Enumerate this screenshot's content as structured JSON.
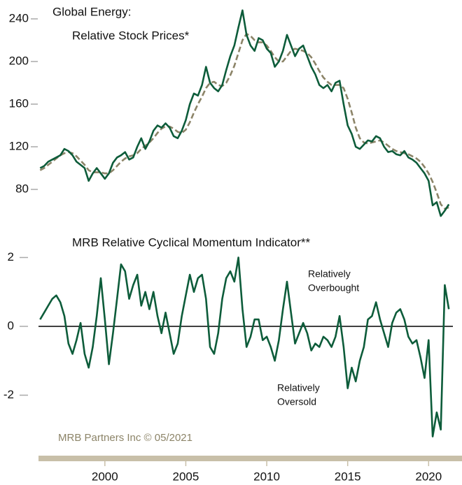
{
  "chart_data": [
    {
      "type": "line",
      "title": "Global Energy:",
      "subtitle": "Relative Stock Prices*",
      "x": [
        1996,
        1996.25,
        1996.5,
        1996.75,
        1997,
        1997.25,
        1997.5,
        1997.75,
        1998,
        1998.25,
        1998.5,
        1998.75,
        1999,
        1999.25,
        1999.5,
        1999.75,
        2000,
        2000.25,
        2000.5,
        2000.75,
        2001,
        2001.25,
        2001.5,
        2001.75,
        2002,
        2002.25,
        2002.5,
        2002.75,
        2003,
        2003.25,
        2003.5,
        2003.75,
        2004,
        2004.25,
        2004.5,
        2004.75,
        2005,
        2005.25,
        2005.5,
        2005.75,
        2006,
        2006.25,
        2006.5,
        2006.75,
        2007,
        2007.25,
        2007.5,
        2007.75,
        2008,
        2008.25,
        2008.5,
        2008.75,
        2009,
        2009.25,
        2009.5,
        2009.75,
        2010,
        2010.25,
        2010.5,
        2010.75,
        2011,
        2011.25,
        2011.5,
        2011.75,
        2012,
        2012.25,
        2012.5,
        2012.75,
        2013,
        2013.25,
        2013.5,
        2013.75,
        2014,
        2014.25,
        2014.5,
        2014.75,
        2015,
        2015.25,
        2015.5,
        2015.75,
        2016,
        2016.25,
        2016.5,
        2016.75,
        2017,
        2017.25,
        2017.5,
        2017.75,
        2018,
        2018.25,
        2018.5,
        2018.75,
        2019,
        2019.25,
        2019.5,
        2019.75,
        2020,
        2020.25,
        2020.5,
        2020.75,
        2021,
        2021.25
      ],
      "series": [
        {
          "color": "#0d5c3a",
          "dashed": false,
          "values": [
            100,
            102,
            106,
            108,
            110,
            112,
            118,
            116,
            112,
            106,
            103,
            100,
            88,
            95,
            100,
            95,
            90,
            95,
            105,
            110,
            112,
            115,
            108,
            110,
            120,
            128,
            118,
            125,
            135,
            140,
            138,
            142,
            138,
            130,
            128,
            135,
            145,
            160,
            170,
            168,
            178,
            195,
            180,
            175,
            172,
            178,
            192,
            205,
            215,
            232,
            248,
            225,
            215,
            210,
            222,
            220,
            212,
            208,
            195,
            200,
            210,
            225,
            215,
            205,
            212,
            215,
            205,
            195,
            188,
            178,
            175,
            178,
            172,
            180,
            182,
            160,
            140,
            132,
            120,
            118,
            122,
            126,
            125,
            130,
            128,
            120,
            115,
            116,
            113,
            112,
            116,
            110,
            108,
            105,
            100,
            95,
            88,
            65,
            68,
            55,
            60,
            66
          ]
        },
        {
          "color": "#8c8468",
          "dashed": true,
          "values": [
            98,
            100,
            103,
            106,
            109,
            112,
            114,
            115,
            114,
            111,
            107,
            103,
            98,
            96,
            96,
            96,
            95,
            95,
            98,
            102,
            106,
            109,
            111,
            112,
            114,
            118,
            121,
            124,
            128,
            133,
            137,
            139,
            139,
            137,
            134,
            133,
            136,
            143,
            152,
            160,
            167,
            175,
            180,
            181,
            178,
            177,
            180,
            187,
            196,
            208,
            220,
            226,
            224,
            220,
            218,
            218,
            215,
            210,
            204,
            200,
            200,
            205,
            210,
            212,
            211,
            210,
            208,
            204,
            198,
            191,
            185,
            181,
            178,
            178,
            178,
            175,
            165,
            152,
            138,
            128,
            124,
            123,
            124,
            125,
            126,
            124,
            121,
            118,
            116,
            115,
            114,
            113,
            111,
            109,
            106,
            101,
            95,
            87,
            77,
            66,
            62,
            63
          ]
        }
      ],
      "xlim": [
        1995.9,
        2021.5
      ],
      "ylim": [
        45,
        252
      ],
      "yticks": [
        80,
        120,
        160,
        200,
        240
      ]
    },
    {
      "type": "line",
      "title": "MRB Relative Cyclical Momentum Indicator**",
      "annotations": [
        [
          "Relatively",
          "Overbought"
        ],
        [
          "Relatively",
          "Oversold"
        ]
      ],
      "x": [
        1996,
        1996.25,
        1996.5,
        1996.75,
        1997,
        1997.25,
        1997.5,
        1997.75,
        1998,
        1998.25,
        1998.5,
        1998.75,
        1999,
        1999.25,
        1999.5,
        1999.75,
        2000,
        2000.25,
        2000.5,
        2000.75,
        2001,
        2001.25,
        2001.5,
        2001.75,
        2002,
        2002.25,
        2002.5,
        2002.75,
        2003,
        2003.25,
        2003.5,
        2003.75,
        2004,
        2004.25,
        2004.5,
        2004.75,
        2005,
        2005.25,
        2005.5,
        2005.75,
        2006,
        2006.25,
        2006.5,
        2006.75,
        2007,
        2007.25,
        2007.5,
        2007.75,
        2008,
        2008.25,
        2008.5,
        2008.75,
        2009,
        2009.25,
        2009.5,
        2009.75,
        2010,
        2010.25,
        2010.5,
        2010.75,
        2011,
        2011.25,
        2011.5,
        2011.75,
        2012,
        2012.25,
        2012.5,
        2012.75,
        2013,
        2013.25,
        2013.5,
        2013.75,
        2014,
        2014.25,
        2014.5,
        2014.75,
        2015,
        2015.25,
        2015.5,
        2015.75,
        2016,
        2016.25,
        2016.5,
        2016.75,
        2017,
        2017.25,
        2017.5,
        2017.75,
        2018,
        2018.25,
        2018.5,
        2018.75,
        2019,
        2019.25,
        2019.5,
        2019.75,
        2020,
        2020.25,
        2020.5,
        2020.75,
        2021,
        2021.25
      ],
      "series": [
        {
          "color": "#0d5c3a",
          "dashed": false,
          "values": [
            0.2,
            0.4,
            0.6,
            0.8,
            0.9,
            0.7,
            0.3,
            -0.5,
            -0.8,
            -0.4,
            0.1,
            -0.8,
            -1.2,
            -0.6,
            0.3,
            1.4,
            0.2,
            -1.1,
            -0.2,
            0.8,
            1.8,
            1.6,
            0.8,
            1.2,
            1.5,
            0.6,
            1.0,
            0.5,
            1.0,
            0.3,
            -0.2,
            0.4,
            -0.2,
            -0.8,
            -0.5,
            0.3,
            0.9,
            1.5,
            1.0,
            1.4,
            1.5,
            0.8,
            -0.6,
            -0.8,
            -0.2,
            0.8,
            1.4,
            1.6,
            1.3,
            2.0,
            0.5,
            -0.6,
            -0.3,
            0.2,
            0.2,
            -0.4,
            -0.3,
            -0.6,
            -1.0,
            -0.4,
            0.5,
            1.3,
            0.4,
            -0.5,
            -0.2,
            0.1,
            -0.2,
            -0.7,
            -0.5,
            -0.6,
            -0.3,
            -0.4,
            -0.6,
            -0.3,
            0.3,
            -0.6,
            -1.8,
            -1.2,
            -1.6,
            -1.0,
            -0.6,
            0.2,
            0.3,
            0.7,
            0.2,
            -0.2,
            -0.6,
            0.1,
            0.4,
            0.5,
            0.2,
            -0.3,
            -0.5,
            -0.4,
            -0.9,
            -1.5,
            -0.4,
            -3.2,
            -2.5,
            -3.0,
            1.2,
            0.5
          ]
        }
      ],
      "xlim": [
        1995.9,
        2021.5
      ],
      "ylim": [
        -3.6,
        2.3
      ],
      "yticks": [
        -2,
        0,
        2
      ],
      "zero_line": true,
      "xticks": [
        2000,
        2005,
        2010,
        2015,
        2020
      ]
    }
  ],
  "source": "MRB Partners Inc © 05/2021"
}
